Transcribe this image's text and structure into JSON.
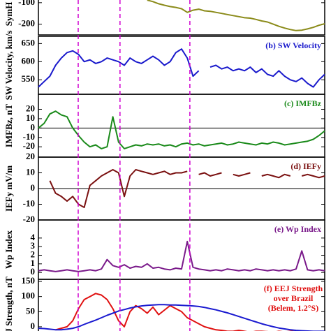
{
  "event_lines": [
    13.9,
    28.5,
    52.9
  ],
  "chart_data": [
    {
      "type": "line",
      "ylabel": "SymH",
      "xlim": [
        0,
        100
      ],
      "ylim": [
        -250,
        -55
      ],
      "yticks": [
        -100,
        -200
      ],
      "x": [
        0,
        2,
        4,
        6,
        8,
        10,
        12,
        14,
        16,
        18,
        20,
        22,
        24,
        26,
        28,
        30,
        32,
        34,
        36,
        38,
        40,
        42,
        44,
        46,
        48,
        50,
        52,
        54,
        56,
        58,
        60,
        62,
        64,
        66,
        68,
        70,
        72,
        74,
        76,
        78,
        80,
        82,
        84,
        86,
        88,
        90,
        92,
        94,
        96,
        98,
        100
      ],
      "series": [
        {
          "color": "#8b8b1a",
          "values": [
            null,
            null,
            null,
            null,
            null,
            null,
            null,
            null,
            null,
            null,
            null,
            null,
            null,
            null,
            null,
            null,
            null,
            null,
            null,
            -88,
            -95,
            -105,
            -112,
            -118,
            -122,
            -128,
            -145,
            -135,
            -130,
            -138,
            -140,
            -145,
            -150,
            -155,
            -160,
            -165,
            -170,
            -172,
            -178,
            -185,
            -190,
            -200,
            -210,
            -218,
            -225,
            -230,
            -228,
            -222,
            -215,
            -205,
            -198
          ]
        }
      ]
    },
    {
      "type": "line",
      "ylabel": "SW Velocity, km/s",
      "annotation": [
        "(b) SW Velocity"
      ],
      "xlim": [
        0,
        100
      ],
      "ylim": [
        510,
        670
      ],
      "yticks": [
        550,
        600,
        650
      ],
      "x": [
        0,
        2,
        4,
        6,
        8,
        10,
        12,
        14,
        16,
        18,
        20,
        22,
        24,
        26,
        28,
        30,
        32,
        34,
        36,
        38,
        40,
        42,
        44,
        46,
        48,
        50,
        52,
        54,
        56,
        58,
        60,
        62,
        64,
        66,
        68,
        70,
        72,
        74,
        76,
        78,
        80,
        82,
        84,
        86,
        88,
        90,
        92,
        94,
        96,
        98,
        100
      ],
      "series": [
        {
          "color": "#1a1acc",
          "values": [
            530,
            545,
            560,
            590,
            610,
            625,
            630,
            620,
            600,
            605,
            595,
            600,
            610,
            605,
            600,
            590,
            610,
            600,
            595,
            605,
            615,
            605,
            590,
            600,
            625,
            635,
            610,
            560,
            575,
            null,
            585,
            590,
            580,
            585,
            575,
            580,
            575,
            585,
            570,
            580,
            565,
            560,
            575,
            560,
            550,
            545,
            555,
            540,
            530,
            550,
            565
          ]
        }
      ]
    },
    {
      "type": "line",
      "ylabel": "IMFBz, nT",
      "annotation": [
        "(c) IMFBz"
      ],
      "zero_line": true,
      "xlim": [
        0,
        100
      ],
      "ylim": [
        -31,
        36
      ],
      "yticks": [
        20,
        10,
        0,
        -10,
        -20
      ],
      "x": [
        0,
        2,
        4,
        6,
        8,
        10,
        12,
        14,
        16,
        18,
        20,
        22,
        24,
        26,
        28,
        30,
        32,
        34,
        36,
        38,
        40,
        42,
        44,
        46,
        48,
        50,
        52,
        54,
        56,
        58,
        60,
        62,
        64,
        66,
        68,
        70,
        72,
        74,
        76,
        78,
        80,
        82,
        84,
        86,
        88,
        90,
        92,
        94,
        96,
        98,
        100
      ],
      "series": [
        {
          "color": "#1a8a1a",
          "values": [
            0,
            5,
            15,
            18,
            14,
            12,
            0,
            -8,
            -15,
            -20,
            -18,
            -22,
            -20,
            12,
            -15,
            -22,
            -20,
            -18,
            -19,
            -17,
            -18,
            -17,
            -19,
            -18,
            -20,
            -17,
            -16,
            -18,
            -17,
            -19,
            -18,
            -17,
            -16,
            -18,
            -17,
            -15,
            -16,
            -17,
            -18,
            -16,
            -17,
            -15,
            -16,
            -18,
            -17,
            -16,
            -15,
            -14,
            -12,
            -8,
            -3
          ]
        }
      ]
    },
    {
      "type": "line",
      "ylabel": "IEFy mV/m",
      "annotation": [
        "(d) IEFy"
      ],
      "zero_line": true,
      "xlim": [
        0,
        100
      ],
      "ylim": [
        -20,
        20
      ],
      "yticks": [
        20,
        10,
        0,
        -10,
        -20
      ],
      "x": [
        0,
        2,
        4,
        6,
        8,
        10,
        12,
        14,
        16,
        18,
        20,
        22,
        24,
        26,
        28,
        30,
        32,
        34,
        36,
        38,
        40,
        42,
        44,
        46,
        48,
        50,
        52,
        54,
        56,
        58,
        60,
        62,
        64,
        66,
        68,
        70,
        72,
        74,
        76,
        78,
        80,
        82,
        84,
        86,
        88,
        90,
        92,
        94,
        96,
        98,
        100
      ],
      "series": [
        {
          "color": "#7a1010",
          "values": [
            null,
            null,
            5,
            -3,
            -5,
            -8,
            -5,
            -10,
            -12,
            2,
            5,
            8,
            10,
            12,
            10,
            -5,
            8,
            12,
            11,
            10,
            9,
            10,
            11,
            9,
            10,
            10,
            11,
            null,
            9,
            10,
            8,
            9,
            10,
            null,
            9,
            8,
            9,
            10,
            null,
            8,
            9,
            8,
            7,
            9,
            8,
            null,
            8,
            9,
            8,
            7,
            8
          ]
        }
      ]
    },
    {
      "type": "line",
      "ylabel": "Wp Index",
      "annotation": [
        "(e) Wp Index"
      ],
      "xlim": [
        0,
        100
      ],
      "ylim": [
        -0.8,
        6.1
      ],
      "yticks": [
        0,
        1,
        2,
        3,
        4
      ],
      "x": [
        0,
        2,
        4,
        6,
        8,
        10,
        12,
        14,
        16,
        18,
        20,
        22,
        24,
        26,
        28,
        30,
        32,
        34,
        36,
        38,
        40,
        42,
        44,
        46,
        48,
        50,
        52,
        54,
        56,
        58,
        60,
        62,
        64,
        66,
        68,
        70,
        72,
        74,
        76,
        78,
        80,
        82,
        84,
        86,
        88,
        90,
        92,
        94,
        96,
        98,
        100
      ],
      "series": [
        {
          "color": "#7a1a8a",
          "values": [
            0.2,
            0.3,
            0.2,
            0.1,
            0.2,
            0.3,
            0.2,
            0.1,
            0.2,
            0.3,
            0.2,
            0.4,
            1.5,
            0.8,
            0.6,
            0.9,
            0.5,
            0.7,
            0.6,
            1.0,
            0.5,
            0.6,
            0.4,
            0.3,
            0.5,
            0.4,
            3.6,
            0.6,
            0.4,
            0.3,
            0.2,
            0.3,
            0.2,
            0.4,
            0.3,
            0.2,
            0.3,
            0.2,
            0.4,
            0.3,
            0.2,
            0.3,
            0.2,
            0.3,
            0.2,
            0.4,
            2.5,
            0.3,
            0.2,
            0.3,
            0.2
          ]
        }
      ]
    },
    {
      "type": "line",
      "ylabel": "EEJ Strength, nT",
      "annotation": [
        "(f) EEJ Strength",
        "over Brazil",
        "(Belem, 1.2°S)"
      ],
      "xlim": [
        0,
        100
      ],
      "ylim": [
        -51,
        157
      ],
      "yticks": [
        0,
        50,
        100,
        150
      ],
      "x": [
        0,
        2,
        4,
        6,
        8,
        10,
        12,
        14,
        16,
        18,
        20,
        22,
        24,
        26,
        28,
        30,
        32,
        34,
        36,
        38,
        40,
        42,
        44,
        46,
        48,
        50,
        52,
        54,
        56,
        58,
        60,
        62,
        64,
        66,
        68,
        70,
        72,
        74,
        76,
        78,
        80,
        82,
        84,
        86,
        88,
        90,
        92,
        94,
        96,
        98,
        100
      ],
      "series": [
        {
          "color": "#e01010",
          "values": [
            null,
            null,
            null,
            -10,
            -5,
            0,
            20,
            60,
            90,
            100,
            110,
            105,
            90,
            60,
            20,
            0,
            50,
            70,
            60,
            45,
            65,
            40,
            55,
            70,
            60,
            50,
            30,
            20,
            10,
            0,
            -5,
            -10,
            -12,
            -15,
            -15,
            -12,
            -15,
            -18,
            -15,
            -15,
            -16,
            -18,
            -15,
            -17,
            -15,
            -16,
            -18,
            -15,
            -16,
            -17,
            -15
          ]
        },
        {
          "color": "#1a1ad0",
          "values": [
            -5,
            -6,
            -8,
            -10,
            -10,
            -8,
            -5,
            0,
            8,
            15,
            22,
            30,
            38,
            45,
            52,
            57,
            62,
            66,
            69,
            71,
            72,
            73,
            73,
            72,
            72,
            71,
            70,
            69,
            67,
            64,
            60,
            56,
            51,
            46,
            40,
            34,
            28,
            22,
            16,
            10,
            5,
            0,
            -4,
            -7,
            -10,
            -12,
            -13,
            -14,
            -15,
            -15,
            -15
          ]
        }
      ]
    }
  ]
}
